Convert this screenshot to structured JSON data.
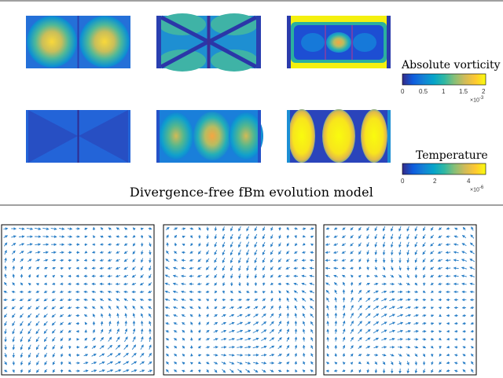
{
  "caption": "Divergence-free fBm evolution model",
  "colorbars": {
    "vorticity": {
      "title": "Absolute vorticity",
      "ticks": [
        "0",
        "0.5",
        "1",
        "1.5",
        "2"
      ],
      "exponent_base": "×10",
      "exponent_power": "-3"
    },
    "temperature": {
      "title": "Temperature",
      "ticks": [
        "0",
        "2",
        "4"
      ],
      "exponent_base": "×10",
      "exponent_power": "-6"
    }
  },
  "colors": {
    "parula": [
      "#352a87",
      "#0f5cdd",
      "#1481d6",
      "#06a4ca",
      "#2eb7a4",
      "#87bf77",
      "#d1bb59",
      "#fec832",
      "#f9fb0e"
    ],
    "frame": "#000000",
    "arrow": "#2a7fc7"
  }
}
